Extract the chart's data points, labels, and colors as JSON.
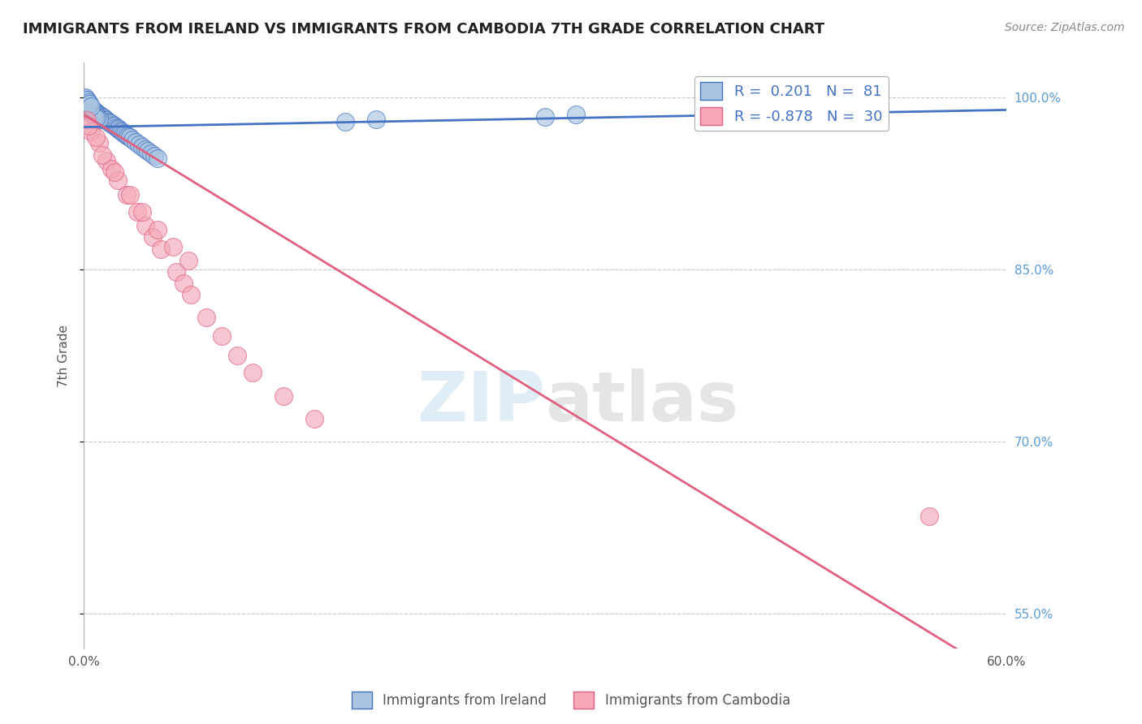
{
  "title": "IMMIGRANTS FROM IRELAND VS IMMIGRANTS FROM CAMBODIA 7TH GRADE CORRELATION CHART",
  "source": "Source: ZipAtlas.com",
  "ylabel": "7th Grade",
  "xlabel_ireland": "Immigrants from Ireland",
  "xlabel_cambodia": "Immigrants from Cambodia",
  "xlim": [
    0.0,
    0.6
  ],
  "ylim": [
    0.52,
    1.03
  ],
  "yticks": [
    0.55,
    0.7,
    0.85,
    1.0
  ],
  "ytick_labels": [
    "55.0%",
    "70.0%",
    "85.0%",
    "100.0%"
  ],
  "xtick_labels": [
    "0.0%",
    "60.0%"
  ],
  "ireland_R": 0.201,
  "ireland_N": 81,
  "cambodia_R": -0.878,
  "cambodia_N": 30,
  "ireland_color": "#a8c4e0",
  "cambodia_color": "#f4a8b8",
  "ireland_line_color": "#4472c4",
  "cambodia_line_color": "#e06080",
  "legend_text_color": "#4472c4",
  "watermark": "ZIPatlas",
  "background_color": "#ffffff",
  "grid_color": "#c8c8c8",
  "title_color": "#222222",
  "ireland_slope": 0.025,
  "ireland_intercept": 0.974,
  "cambodia_slope": -0.82,
  "cambodia_intercept": 0.985,
  "ireland_x": [
    0.001,
    0.001,
    0.002,
    0.002,
    0.002,
    0.003,
    0.003,
    0.003,
    0.004,
    0.004,
    0.004,
    0.005,
    0.005,
    0.005,
    0.006,
    0.006,
    0.006,
    0.007,
    0.007,
    0.007,
    0.008,
    0.008,
    0.009,
    0.009,
    0.01,
    0.01,
    0.011,
    0.012,
    0.013,
    0.014,
    0.015,
    0.016,
    0.017,
    0.018,
    0.019,
    0.02,
    0.021,
    0.022,
    0.023,
    0.024,
    0.025,
    0.026,
    0.027,
    0.028,
    0.029,
    0.03,
    0.032,
    0.034,
    0.036,
    0.038,
    0.04,
    0.042,
    0.044,
    0.046,
    0.048,
    0.001,
    0.002,
    0.003,
    0.004,
    0.005,
    0.006,
    0.007,
    0.008,
    0.009,
    0.01,
    0.002,
    0.003,
    0.004,
    0.005,
    0.006,
    0.007,
    0.008,
    0.17,
    0.19,
    0.3,
    0.32,
    0.001,
    0.002,
    0.003,
    0.004,
    0.005
  ],
  "ireland_y": [
    0.998,
    0.996,
    0.995,
    0.993,
    0.991,
    0.992,
    0.99,
    0.989,
    0.991,
    0.989,
    0.988,
    0.99,
    0.988,
    0.987,
    0.989,
    0.987,
    0.986,
    0.988,
    0.986,
    0.985,
    0.987,
    0.985,
    0.986,
    0.984,
    0.985,
    0.983,
    0.984,
    0.983,
    0.982,
    0.981,
    0.98,
    0.979,
    0.978,
    0.977,
    0.976,
    0.975,
    0.974,
    0.973,
    0.972,
    0.971,
    0.97,
    0.969,
    0.968,
    0.967,
    0.966,
    0.965,
    0.963,
    0.961,
    0.959,
    0.957,
    0.955,
    0.953,
    0.951,
    0.949,
    0.947,
    0.999,
    0.997,
    0.995,
    0.993,
    0.991,
    0.989,
    0.987,
    0.985,
    0.983,
    0.981,
    0.994,
    0.992,
    0.99,
    0.988,
    0.986,
    0.984,
    0.982,
    0.979,
    0.981,
    0.983,
    0.985,
    1.0,
    0.998,
    0.996,
    0.994,
    0.992
  ],
  "cambodia_x": [
    0.002,
    0.005,
    0.01,
    0.015,
    0.018,
    0.022,
    0.028,
    0.035,
    0.04,
    0.045,
    0.05,
    0.06,
    0.065,
    0.07,
    0.08,
    0.09,
    0.1,
    0.11,
    0.13,
    0.15,
    0.008,
    0.012,
    0.02,
    0.03,
    0.038,
    0.048,
    0.058,
    0.068,
    0.55,
    0.003
  ],
  "cambodia_y": [
    0.98,
    0.97,
    0.96,
    0.945,
    0.938,
    0.928,
    0.915,
    0.9,
    0.888,
    0.878,
    0.868,
    0.848,
    0.838,
    0.828,
    0.808,
    0.792,
    0.775,
    0.76,
    0.74,
    0.72,
    0.965,
    0.95,
    0.935,
    0.915,
    0.9,
    0.885,
    0.87,
    0.858,
    0.635,
    0.975
  ]
}
